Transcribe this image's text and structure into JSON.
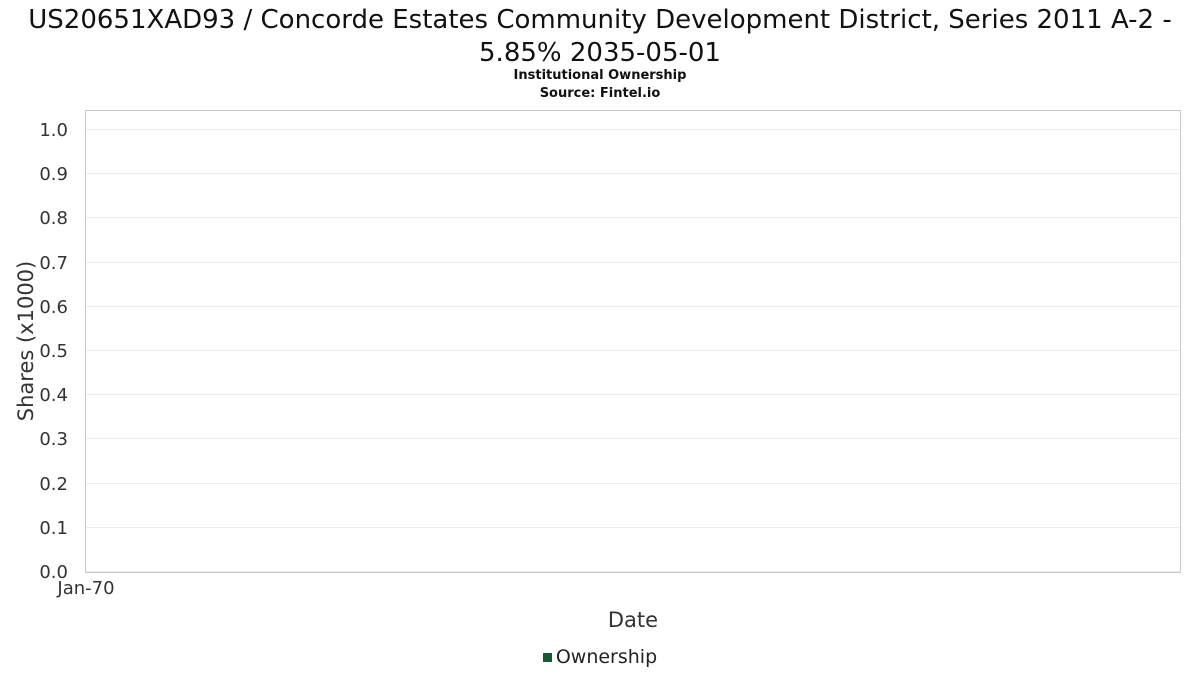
{
  "chart_data": {
    "type": "line",
    "title": "US20651XAD93 / Concorde Estates Community Development District, Series 2011 A-2 - 5.85% 2035-05-01",
    "subtitle": "Institutional Ownership",
    "source": "Source: Fintel.io",
    "xlabel": "Date",
    "ylabel": "Shares (x1000)",
    "x": [],
    "series": [
      {
        "name": "Ownership",
        "values": []
      }
    ],
    "xticks": [
      "Jan-70"
    ],
    "yticks": [
      "0.0",
      "0.1",
      "0.2",
      "0.3",
      "0.4",
      "0.5",
      "0.6",
      "0.7",
      "0.8",
      "0.9",
      "1.0"
    ],
    "ylim": [
      0,
      1.045
    ],
    "grid": "horizontal",
    "legend_position": "bottom",
    "legend": [
      "Ownership"
    ],
    "colors": {
      "legend_marker": "#145a32",
      "grid": "#ececec",
      "axis_border": "#c9c9c9"
    }
  }
}
